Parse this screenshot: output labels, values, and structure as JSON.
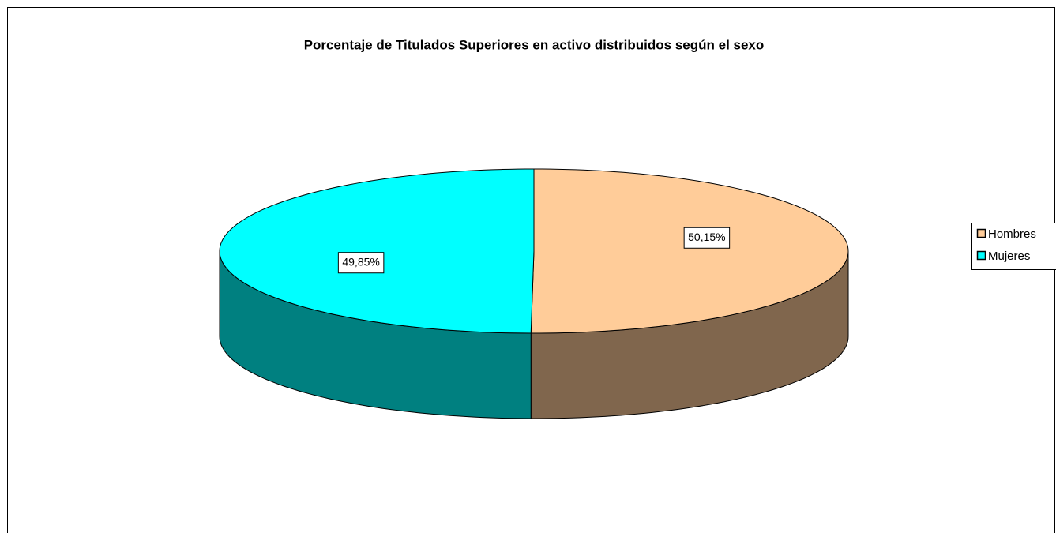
{
  "chart_data": {
    "type": "pie3d",
    "title": "Porcentaje de Titulados Superiores en activo distribuidos según el sexo",
    "categories": [
      "Hombres",
      "Mujeres"
    ],
    "values": [
      50.15,
      49.85
    ],
    "value_labels": [
      "50,15%",
      "49,85%"
    ],
    "colors": [
      "#ffcc99",
      "#00ffff"
    ],
    "legend": "right"
  }
}
